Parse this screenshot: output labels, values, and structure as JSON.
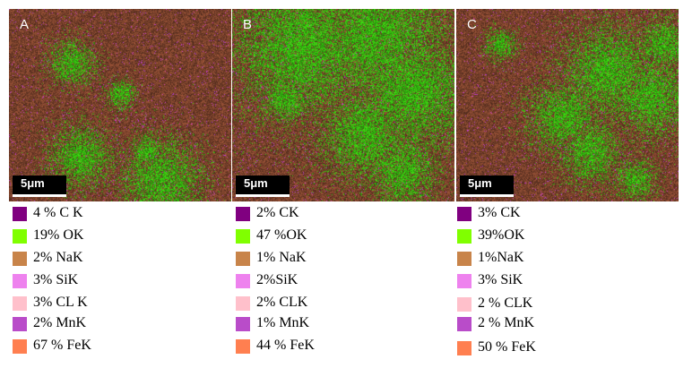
{
  "scale_label": "5μm",
  "colors": {
    "C": "#800080",
    "O": "#80ff00",
    "Na": "#c8844a",
    "Si": "#ee82ee",
    "Cl": "#ffc0cb",
    "Mn": "#b94cc9",
    "Fe": "#ff7f50",
    "background": "#5a3626"
  },
  "panels": [
    {
      "letter": "A",
      "legend": [
        {
          "label": "4 % C K",
          "element": "C"
        },
        {
          "label": "19% OK",
          "element": "O"
        },
        {
          "label": "2% NaK",
          "element": "Na"
        },
        {
          "label": "3% SiK",
          "element": "Si"
        },
        {
          "label": "3% CL K",
          "element": "Cl"
        },
        {
          "label": "2% MnK",
          "element": "Mn"
        },
        {
          "label": "67 % FeK",
          "element": "Fe"
        }
      ]
    },
    {
      "letter": "B",
      "legend": [
        {
          "label": "2% CK",
          "element": "C"
        },
        {
          "label": "47 %OK",
          "element": "O"
        },
        {
          "label": "1% NaK",
          "element": "Na"
        },
        {
          "label": "2%SiK",
          "element": "Si"
        },
        {
          "label": "2% CLK",
          "element": "Cl"
        },
        {
          "label": "1% MnK",
          "element": "Mn"
        },
        {
          "label": "44 % FeK",
          "element": "Fe"
        }
      ]
    },
    {
      "letter": "C",
      "legend": [
        {
          "label": "3% CK",
          "element": "C"
        },
        {
          "label": "39%OK",
          "element": "O"
        },
        {
          "label": "1%NaK",
          "element": "Na"
        },
        {
          "label": "3% SiK",
          "element": "Si"
        },
        {
          "label": "2 % CLK",
          "element": "Cl"
        },
        {
          "label": "2 % MnK",
          "element": "Mn"
        },
        {
          "label": "50 % FeK",
          "element": "Fe"
        }
      ]
    }
  ]
}
